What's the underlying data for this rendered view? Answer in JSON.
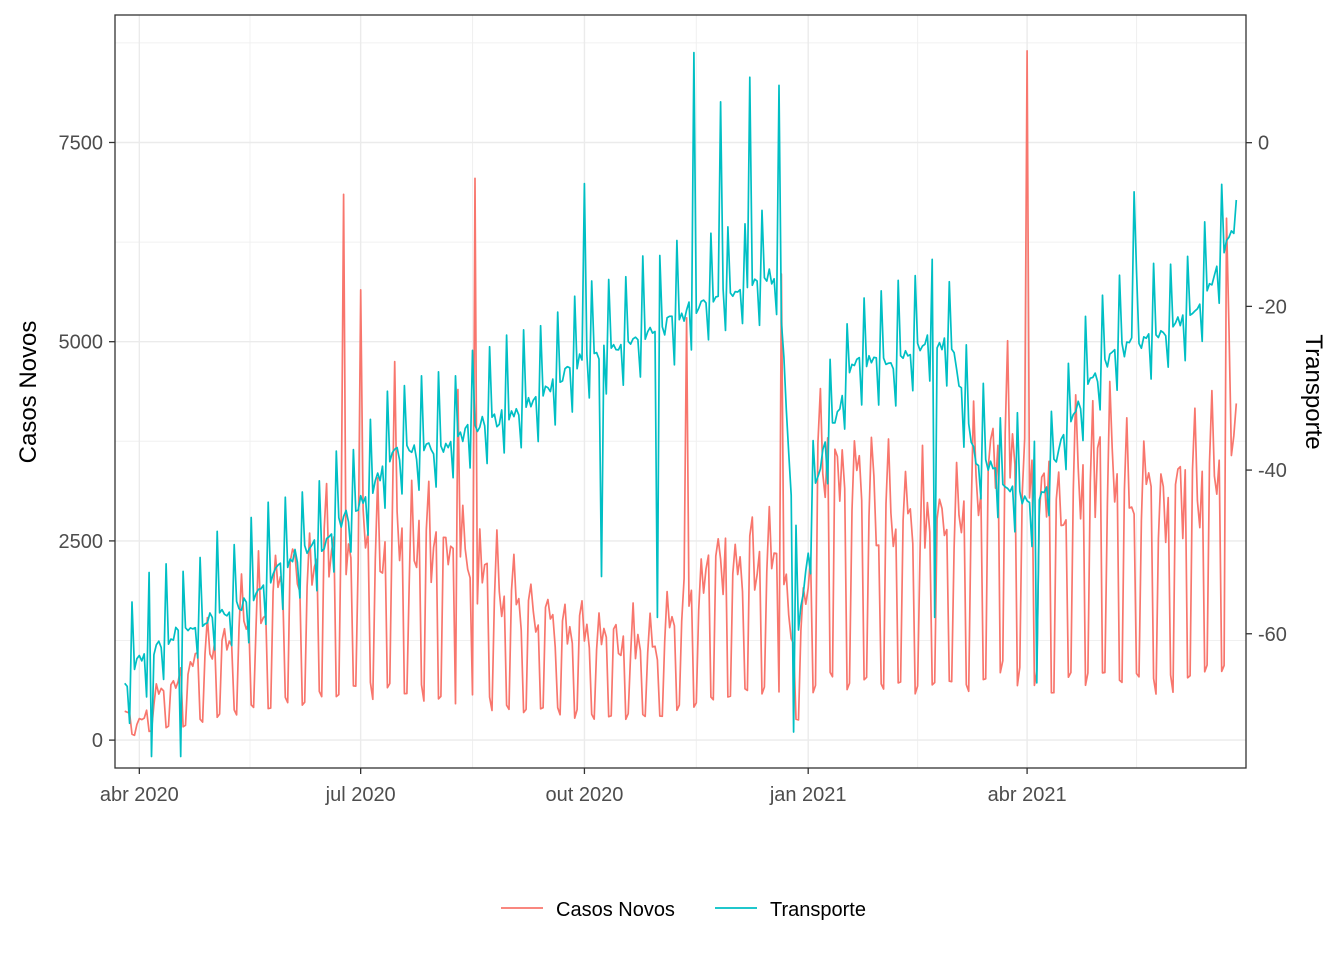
{
  "chart_data": {
    "type": "line",
    "title": "",
    "xlabel": "",
    "ylabel": "Casos Novos",
    "y2label": "Transporte",
    "x_range": [
      "2020-03-22",
      "2021-06-30"
    ],
    "x_ticks": [
      {
        "date": "2020-04-01",
        "label": "abr 2020"
      },
      {
        "date": "2020-07-01",
        "label": "jul 2020"
      },
      {
        "date": "2020-10-01",
        "label": "out 2020"
      },
      {
        "date": "2021-01-01",
        "label": "jan 2021"
      },
      {
        "date": "2021-04-01",
        "label": "abr 2021"
      }
    ],
    "ylim": [
      -350,
      9100
    ],
    "y_ticks": [
      0,
      2500,
      5000,
      7500
    ],
    "y2lim": [
      -76.4,
      15.6
    ],
    "y2_ticks": [
      0,
      -20,
      -40,
      -60
    ],
    "grid": true,
    "legend_position": "bottom",
    "series": [
      {
        "name": "Casos Novos",
        "axis": "left",
        "color": "#F8766D",
        "anchors": [
          [
            "2020-03-26",
            400
          ],
          [
            "2020-04-01",
            180
          ],
          [
            "2020-04-10",
            600
          ],
          [
            "2020-04-20",
            800
          ],
          [
            "2020-05-01",
            1100
          ],
          [
            "2020-05-15",
            1500
          ],
          [
            "2020-06-01",
            2100
          ],
          [
            "2020-06-20",
            2300
          ],
          [
            "2020-07-01",
            2500
          ],
          [
            "2020-07-15",
            2400
          ],
          [
            "2020-08-01",
            2300
          ],
          [
            "2020-08-15",
            2000
          ],
          [
            "2020-09-01",
            1700
          ],
          [
            "2020-09-15",
            1400
          ],
          [
            "2020-10-01",
            1300
          ],
          [
            "2020-10-15",
            1150
          ],
          [
            "2020-11-01",
            1150
          ],
          [
            "2020-11-10",
            1600
          ],
          [
            "2020-11-25",
            2100
          ],
          [
            "2020-12-10",
            2200
          ],
          [
            "2020-12-20",
            2300
          ],
          [
            "2020-12-28",
            900
          ],
          [
            "2021-01-05",
            3200
          ],
          [
            "2021-01-20",
            3100
          ],
          [
            "2021-02-05",
            2500
          ],
          [
            "2021-02-20",
            2500
          ],
          [
            "2021-03-05",
            2600
          ],
          [
            "2021-03-20",
            3600
          ],
          [
            "2021-04-01",
            3000
          ],
          [
            "2021-04-15",
            2900
          ],
          [
            "2021-05-01",
            3300
          ],
          [
            "2021-05-20",
            2800
          ],
          [
            "2021-06-10",
            3000
          ],
          [
            "2021-06-26",
            3600
          ]
        ],
        "spikes": [
          [
            "2020-06-24",
            6850
          ],
          [
            "2020-07-01",
            5650
          ],
          [
            "2020-08-17",
            7050
          ],
          [
            "2020-11-12",
            5300
          ],
          [
            "2020-12-21",
            5850
          ],
          [
            "2021-04-01",
            8650
          ],
          [
            "2021-06-22",
            6550
          ],
          [
            "2020-07-15",
            4750
          ],
          [
            "2020-08-10",
            4400
          ],
          [
            "2021-05-05",
            4500
          ]
        ],
        "weekly_low_factor": 0.2
      },
      {
        "name": "Transporte",
        "axis": "right",
        "color": "#00BFC4",
        "anchors": [
          [
            "2020-03-26",
            -66.5
          ],
          [
            "2020-04-01",
            -63.5
          ],
          [
            "2020-04-15",
            -60
          ],
          [
            "2020-05-01",
            -57.5
          ],
          [
            "2020-05-15",
            -56
          ],
          [
            "2020-06-01",
            -51
          ],
          [
            "2020-06-15",
            -49
          ],
          [
            "2020-07-01",
            -44
          ],
          [
            "2020-07-15",
            -38
          ],
          [
            "2020-08-01",
            -37.5
          ],
          [
            "2020-08-15",
            -35
          ],
          [
            "2020-09-01",
            -33
          ],
          [
            "2020-09-15",
            -30.5
          ],
          [
            "2020-10-01",
            -26
          ],
          [
            "2020-10-15",
            -25
          ],
          [
            "2020-11-01",
            -23
          ],
          [
            "2020-11-15",
            -20
          ],
          [
            "2020-12-01",
            -18
          ],
          [
            "2020-12-20",
            -16
          ],
          [
            "2020-12-28",
            -60
          ],
          [
            "2021-01-05",
            -40
          ],
          [
            "2021-01-20",
            -27
          ],
          [
            "2021-02-05",
            -27
          ],
          [
            "2021-02-20",
            -24
          ],
          [
            "2021-03-01",
            -25
          ],
          [
            "2021-03-10",
            -38
          ],
          [
            "2021-03-25",
            -42
          ],
          [
            "2021-04-05",
            -45
          ],
          [
            "2021-04-20",
            -33
          ],
          [
            "2021-05-05",
            -26
          ],
          [
            "2021-05-20",
            -24
          ],
          [
            "2021-06-10",
            -21
          ],
          [
            "2021-06-26",
            -10
          ]
        ],
        "spikes": [
          [
            "2020-11-15",
            11
          ],
          [
            "2020-12-08",
            8
          ],
          [
            "2020-12-20",
            7
          ],
          [
            "2020-11-26",
            5
          ],
          [
            "2020-10-01",
            -5
          ],
          [
            "2021-05-15",
            -6
          ],
          [
            "2021-06-26",
            -7
          ]
        ],
        "dips": [
          [
            "2020-04-06",
            -75
          ],
          [
            "2020-04-18",
            -75
          ],
          [
            "2020-10-08",
            -53
          ],
          [
            "2020-10-31",
            -58
          ],
          [
            "2020-12-26",
            -72
          ],
          [
            "2021-04-05",
            -66
          ],
          [
            "2021-02-22",
            -58
          ]
        ],
        "weekly_low_offset": -5
      }
    ]
  }
}
